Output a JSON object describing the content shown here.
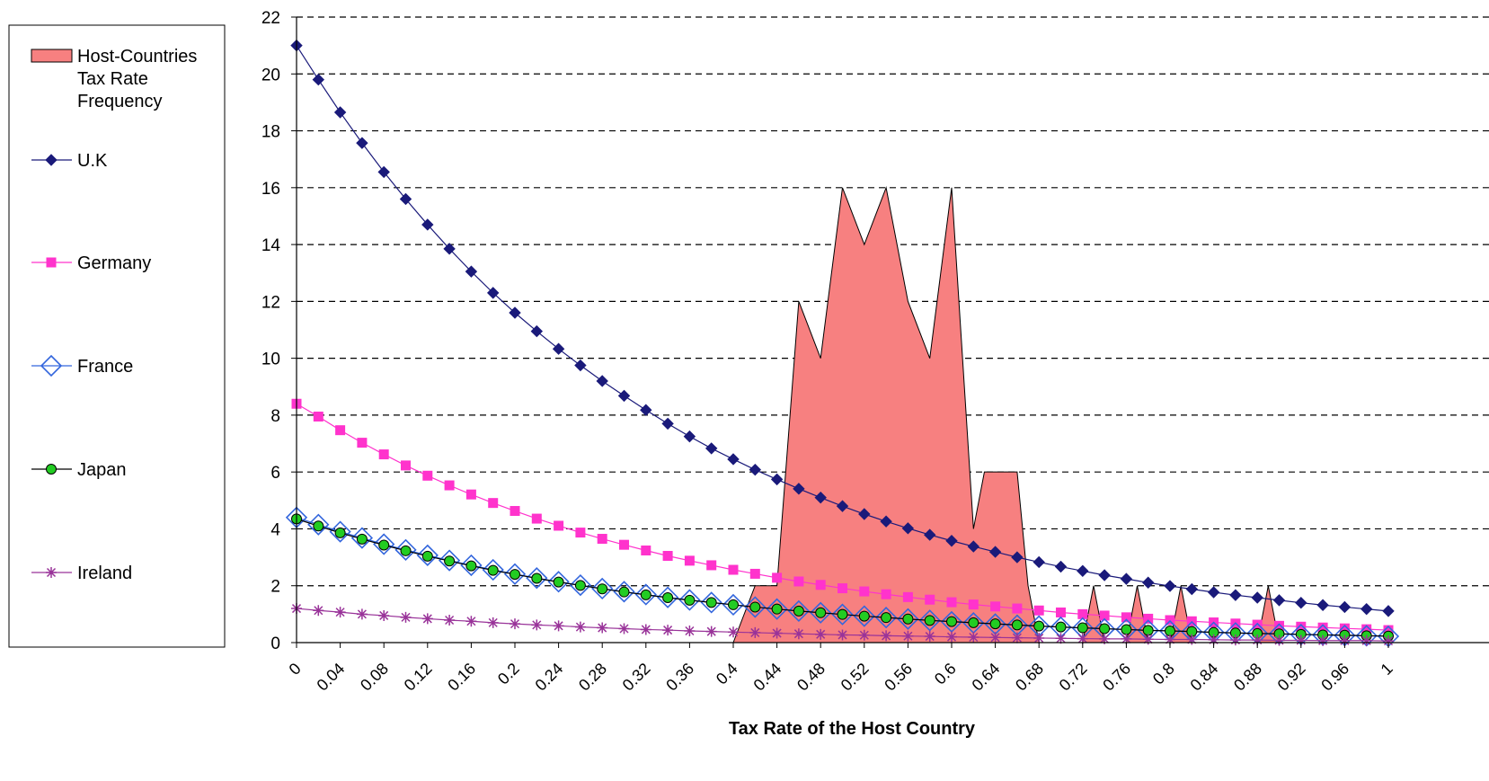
{
  "chart_data": {
    "type": "line",
    "xlabel": "Tax Rate of the Host Country",
    "ylabel": "",
    "ylim": [
      0,
      22
    ],
    "xlim": [
      0,
      1
    ],
    "y_ticks": [
      0,
      2,
      4,
      6,
      8,
      10,
      12,
      14,
      16,
      18,
      20,
      22
    ],
    "x_ticks": [
      "0",
      "0.04",
      "0.08",
      "0.12",
      "0.16",
      "0.2",
      "0.24",
      "0.28",
      "0.32",
      "0.36",
      "0.4",
      "0.44",
      "0.48",
      "0.52",
      "0.56",
      "0.6",
      "0.64",
      "0.68",
      "0.72",
      "0.76",
      "0.8",
      "0.84",
      "0.88",
      "0.92",
      "0.96",
      "1"
    ],
    "grid": "horizontal dashed",
    "legend_position": "left",
    "series": [
      {
        "name": "Host-Countries Tax Rate Frequency",
        "kind": "area",
        "color": "#f78080",
        "x": [
          0.4,
          0.42,
          0.43,
          0.44,
          0.46,
          0.48,
          0.5,
          0.52,
          0.54,
          0.56,
          0.58,
          0.6,
          0.62,
          0.63,
          0.64,
          0.66,
          0.67,
          0.68,
          0.7,
          0.72,
          0.73,
          0.74,
          0.76,
          0.77,
          0.78,
          0.8,
          0.81,
          0.82,
          0.88,
          0.89,
          0.9
        ],
        "values": [
          0,
          2,
          2,
          2,
          12,
          10,
          16,
          14,
          16,
          12,
          10,
          16,
          4,
          6,
          6,
          6,
          2,
          0,
          0,
          0,
          2,
          0,
          0,
          2,
          0,
          0,
          2,
          0,
          0,
          2,
          0
        ]
      },
      {
        "name": "U.K",
        "kind": "line",
        "marker": "diamond",
        "color": "#1a1a7a",
        "x_start": 0,
        "x_step": 0.02,
        "values": [
          21.0,
          19.8,
          18.65,
          17.57,
          16.55,
          15.6,
          14.7,
          13.85,
          13.05,
          12.3,
          11.6,
          10.95,
          10.33,
          9.75,
          9.2,
          8.68,
          8.18,
          7.7,
          7.25,
          6.83,
          6.45,
          6.08,
          5.74,
          5.41,
          5.1,
          4.8,
          4.52,
          4.26,
          4.02,
          3.79,
          3.58,
          3.38,
          3.19,
          3.0,
          2.83,
          2.67,
          2.52,
          2.37,
          2.24,
          2.11,
          1.99,
          1.88,
          1.77,
          1.67,
          1.58,
          1.49,
          1.4,
          1.32,
          1.25,
          1.18,
          1.11
        ]
      },
      {
        "name": "Germany",
        "kind": "line",
        "marker": "square",
        "color": "#ff33cc",
        "x_start": 0,
        "x_step": 0.02,
        "values": [
          8.4,
          7.95,
          7.47,
          7.03,
          6.62,
          6.23,
          5.87,
          5.53,
          5.21,
          4.91,
          4.63,
          4.36,
          4.11,
          3.87,
          3.65,
          3.44,
          3.24,
          3.05,
          2.88,
          2.72,
          2.56,
          2.42,
          2.28,
          2.15,
          2.03,
          1.91,
          1.8,
          1.7,
          1.6,
          1.51,
          1.42,
          1.34,
          1.27,
          1.2,
          1.13,
          1.06,
          1.0,
          0.95,
          0.89,
          0.84,
          0.79,
          0.75,
          0.71,
          0.67,
          0.63,
          0.59,
          0.56,
          0.53,
          0.5,
          0.47,
          0.44
        ]
      },
      {
        "name": "France",
        "kind": "line",
        "marker": "open-diamond",
        "color": "#3366dd",
        "x_start": 0,
        "x_step": 0.02,
        "values": [
          4.4,
          4.15,
          3.9,
          3.68,
          3.46,
          3.26,
          3.07,
          2.89,
          2.72,
          2.56,
          2.41,
          2.27,
          2.14,
          2.02,
          1.9,
          1.79,
          1.69,
          1.59,
          1.5,
          1.41,
          1.33,
          1.25,
          1.18,
          1.11,
          1.05,
          0.99,
          0.93,
          0.88,
          0.83,
          0.78,
          0.73,
          0.69,
          0.65,
          0.61,
          0.58,
          0.54,
          0.51,
          0.48,
          0.46,
          0.43,
          0.41,
          0.38,
          0.36,
          0.34,
          0.32,
          0.3,
          0.28,
          0.27,
          0.25,
          0.24,
          0.22
        ]
      },
      {
        "name": "Japan",
        "kind": "line",
        "marker": "circle",
        "color": "#22cc22",
        "x_start": 0,
        "x_step": 0.02,
        "values": [
          4.35,
          4.1,
          3.86,
          3.64,
          3.43,
          3.23,
          3.04,
          2.87,
          2.7,
          2.54,
          2.4,
          2.26,
          2.13,
          2.01,
          1.89,
          1.78,
          1.68,
          1.58,
          1.49,
          1.41,
          1.33,
          1.25,
          1.18,
          1.11,
          1.05,
          0.99,
          0.93,
          0.88,
          0.83,
          0.78,
          0.74,
          0.7,
          0.66,
          0.62,
          0.58,
          0.55,
          0.52,
          0.49,
          0.46,
          0.43,
          0.41,
          0.39,
          0.36,
          0.34,
          0.32,
          0.31,
          0.29,
          0.27,
          0.26,
          0.24,
          0.23
        ]
      },
      {
        "name": "Ireland",
        "kind": "line",
        "marker": "star",
        "color": "#993399",
        "x_start": 0,
        "x_step": 0.02,
        "values": [
          1.2,
          1.13,
          1.07,
          1.0,
          0.95,
          0.89,
          0.84,
          0.79,
          0.75,
          0.7,
          0.66,
          0.62,
          0.59,
          0.55,
          0.52,
          0.49,
          0.46,
          0.44,
          0.41,
          0.39,
          0.37,
          0.35,
          0.33,
          0.31,
          0.29,
          0.27,
          0.26,
          0.24,
          0.23,
          0.22,
          0.2,
          0.19,
          0.18,
          0.17,
          0.16,
          0.15,
          0.14,
          0.13,
          0.13,
          0.12,
          0.11,
          0.11,
          0.1,
          0.09,
          0.09,
          0.08,
          0.08,
          0.07,
          0.07,
          0.07,
          0.06
        ]
      }
    ],
    "legend": {
      "entries": [
        "Host-Countries Tax Rate Frequency",
        "U.K",
        "Germany",
        "France",
        "Japan",
        "Ireland"
      ],
      "lines": [
        [
          "Host-Countries",
          "Tax Rate",
          "Frequency"
        ],
        [
          "U.K"
        ],
        [
          "Germany"
        ],
        [
          "France"
        ],
        [
          "Japan"
        ],
        [
          "Ireland"
        ]
      ]
    }
  }
}
